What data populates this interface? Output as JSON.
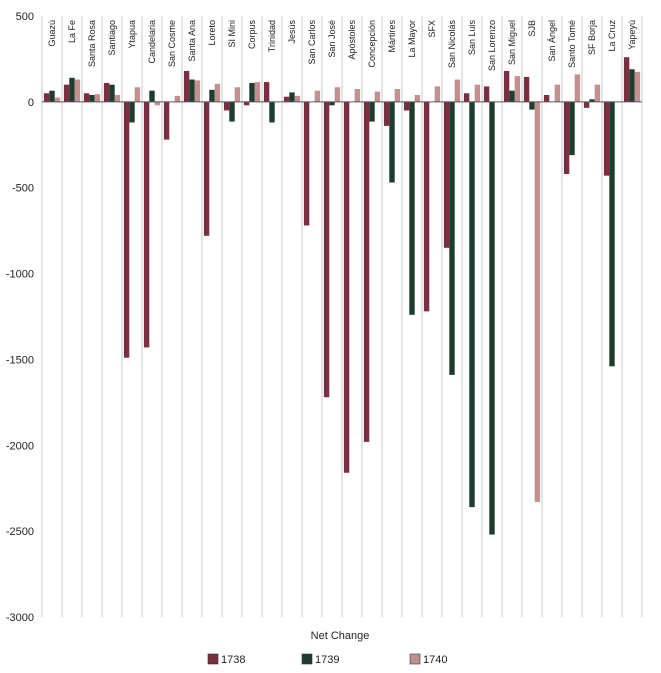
{
  "chart_data": {
    "type": "bar",
    "xlabel": "Net Change",
    "ylabel": "",
    "ylim": [
      -3000,
      500
    ],
    "yticks": [
      500,
      0,
      -500,
      -1000,
      -1500,
      -2000,
      -2500,
      -3000
    ],
    "grid": "vertical category separators",
    "legend": "bottom",
    "categories": [
      "Guazú",
      "La Fe",
      "Santa Rosa",
      "Santiago",
      "Ytapua",
      "Candelaria",
      "San Cosme",
      "Santa Ana",
      "Loreto",
      "SI Mini",
      "Corpus",
      "Trinidad",
      "Jesús",
      "San Carlos",
      "San José",
      "Apóstoles",
      "Concepción",
      "Mártires",
      "La Mayor",
      "SFX",
      "San Nicolás",
      "San Luis",
      "San Lorenzo",
      "San Miguel",
      "SJB",
      "San Ángel",
      "Santo Tomé",
      "SF Borja",
      "La Cruz",
      "Yapeyú"
    ],
    "series": [
      {
        "name": "1738",
        "color": "#7a2e3f",
        "values": [
          50,
          100,
          50,
          110,
          -1490,
          -1430,
          -220,
          180,
          -780,
          -50,
          -20,
          115,
          30,
          -720,
          -1720,
          -2160,
          -1980,
          -140,
          -50,
          -1220,
          -850,
          50,
          90,
          180,
          145,
          40,
          -420,
          -35,
          -430,
          260
        ]
      },
      {
        "name": "1739",
        "color": "#1e3d2e",
        "values": [
          65,
          140,
          40,
          100,
          -120,
          65,
          0,
          130,
          70,
          -115,
          110,
          -120,
          55,
          0,
          -20,
          0,
          -115,
          -470,
          -1240,
          0,
          -1590,
          -2360,
          -2520,
          65,
          -45,
          0,
          -310,
          15,
          -1540,
          190
        ]
      },
      {
        "name": "1740",
        "color": "#c4908f",
        "values": [
          25,
          130,
          45,
          40,
          85,
          -20,
          35,
          125,
          105,
          85,
          115,
          0,
          35,
          65,
          85,
          75,
          60,
          75,
          40,
          90,
          130,
          100,
          0,
          150,
          -2330,
          100,
          160,
          100,
          0,
          175
        ]
      }
    ]
  }
}
